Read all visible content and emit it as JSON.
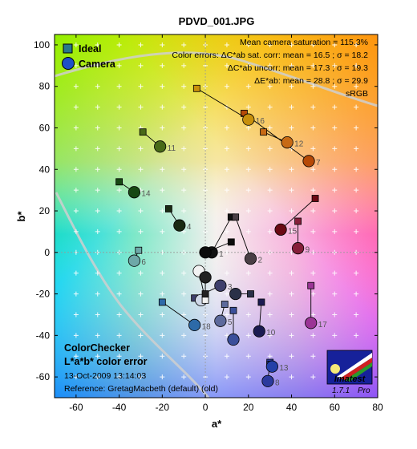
{
  "chart_data": {
    "type": "scatter",
    "title": "PDVD_001.JPG",
    "xlabel": "a*",
    "ylabel": "b*",
    "xlim": [
      -70,
      80
    ],
    "ylim": [
      -70,
      105
    ],
    "xticks": [
      -60,
      -40,
      -20,
      0,
      20,
      40,
      60,
      80
    ],
    "yticks": [
      -60,
      -40,
      -20,
      0,
      20,
      40,
      60,
      80,
      100
    ],
    "grid": "plus markers every 10 units",
    "legend": [
      {
        "name": "Ideal",
        "marker": "square"
      },
      {
        "name": "Camera",
        "marker": "circle"
      }
    ],
    "legend_position": "top-left",
    "stats": [
      "Mean camera saturation = 115.3%",
      "Color errors:  ΔC*ab sat. corr:  mean = 16.5 ;  σ = 18.2",
      "ΔC*ab uncorr:  mean = 17.3 ;  σ = 19.3",
      "ΔE*ab:  mean = 28.8 ;  σ = 29.9",
      "sRGB"
    ],
    "footer": {
      "line1": "ColorChecker",
      "line2": "L*a*b* color error",
      "line3": "13-Oct-2009 13:14:03",
      "line4": "Reference: GretagMacbeth (default) (old)"
    },
    "logo": {
      "brand": "Imatest",
      "version": "1.7.1",
      "edition": "Pro"
    },
    "patches": [
      {
        "id": 1,
        "ideal": [
          12,
          17
        ],
        "camera": [
          3,
          0
        ],
        "color": "#111111"
      },
      {
        "id": 2,
        "ideal": [
          14,
          17
        ],
        "camera": [
          21,
          -3
        ],
        "color": "#4a3f45"
      },
      {
        "id": 3,
        "ideal": [
          -5,
          -22
        ],
        "camera": [
          7,
          -16
        ],
        "color": "#3e3f6c"
      },
      {
        "id": 4,
        "ideal": [
          -17,
          21
        ],
        "camera": [
          -12,
          13
        ],
        "color": "#1a2a12"
      },
      {
        "id": 5,
        "ideal": [
          9,
          -25
        ],
        "camera": [
          7,
          -33
        ],
        "color": "#5d6a9c"
      },
      {
        "id": 6,
        "ideal": [
          -31,
          1
        ],
        "camera": [
          -33,
          -4
        ],
        "color": "#6ea8a8"
      },
      {
        "id": 7,
        "ideal": [
          18,
          67
        ],
        "camera": [
          48,
          44
        ],
        "color": "#b64a08"
      },
      {
        "id": 8,
        "ideal": [
          30,
          -53
        ],
        "camera": [
          29,
          -62
        ],
        "color": "#2c3a9e"
      },
      {
        "id": 9,
        "ideal": [
          43,
          15
        ],
        "camera": [
          43,
          2
        ],
        "color": "#861f3a"
      },
      {
        "id": 10,
        "ideal": [
          26,
          -24
        ],
        "camera": [
          25,
          -38
        ],
        "color": "#1b1b52"
      },
      {
        "id": 11,
        "ideal": [
          -29,
          58
        ],
        "camera": [
          -21,
          51
        ],
        "color": "#486a18"
      },
      {
        "id": 12,
        "ideal": [
          27,
          58
        ],
        "camera": [
          38,
          53
        ],
        "color": "#c76a15"
      },
      {
        "id": 13,
        "ideal": [
          30,
          -54
        ],
        "camera": [
          31,
          -55
        ],
        "color": "#2440a8"
      },
      {
        "id": 14,
        "ideal": [
          -40,
          34
        ],
        "camera": [
          -33,
          29
        ],
        "color": "#174813"
      },
      {
        "id": 15,
        "ideal": [
          51,
          26
        ],
        "camera": [
          35,
          11
        ],
        "color": "#6b0a14"
      },
      {
        "id": 16,
        "ideal": [
          -4,
          79
        ],
        "camera": [
          20,
          64
        ],
        "color": "#c8900c"
      },
      {
        "id": 17,
        "ideal": [
          49,
          -16
        ],
        "camera": [
          49,
          -34
        ],
        "color": "#9b3596"
      },
      {
        "id": 18,
        "ideal": [
          -20,
          -24
        ],
        "camera": [
          -5,
          -35
        ],
        "color": "#2d6aa8"
      },
      {
        "id": 19,
        "ideal": [
          0,
          -22
        ],
        "camera": [
          -2,
          -23
        ],
        "color": "#cfd8e8"
      },
      {
        "id": 20,
        "ideal": [
          0,
          -23
        ],
        "camera": [
          -3,
          -9
        ],
        "color": "#f2f2f2"
      },
      {
        "id": 21,
        "ideal": [
          0,
          -20
        ],
        "camera": [
          0,
          -12
        ],
        "color": "#222222"
      },
      {
        "id": 22,
        "ideal": [
          12,
          5
        ],
        "camera": [
          0,
          0
        ],
        "color": "#0c0c0c"
      },
      {
        "id": 23,
        "ideal": [
          21,
          -20
        ],
        "camera": [
          14,
          -20
        ],
        "color": "#2a3148"
      },
      {
        "id": 24,
        "ideal": [
          13,
          -28
        ],
        "camera": [
          13,
          -42
        ],
        "color": "#3a4f9a"
      }
    ]
  }
}
